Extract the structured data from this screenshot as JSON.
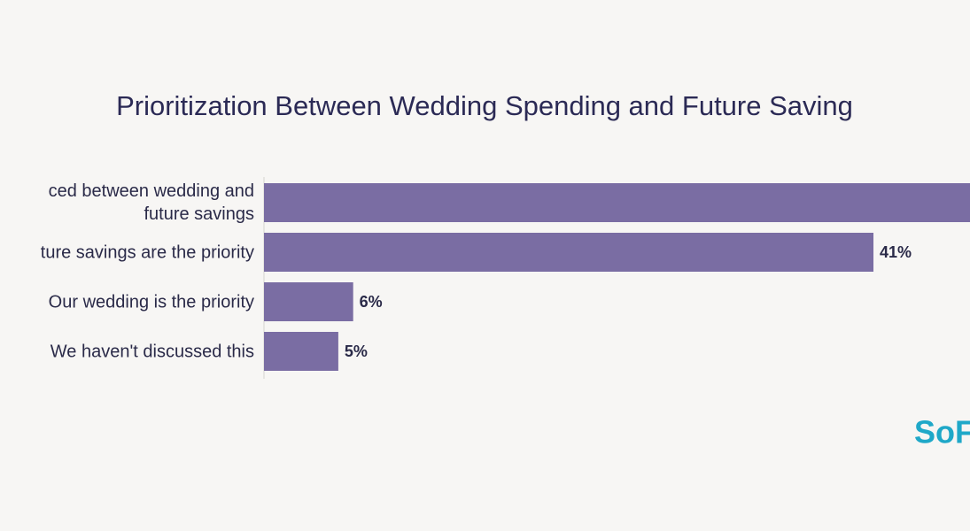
{
  "chart_data": {
    "type": "bar",
    "orientation": "horizontal",
    "title": "Prioritization Between Wedding Spending and Future Saving",
    "categories": [
      "ced between wedding and\nfuture savings",
      "ture savings are the priority",
      "Our wedding is the priority",
      "We haven't discussed this"
    ],
    "values": [
      48,
      41,
      6,
      5
    ],
    "value_labels": [
      null,
      "41%",
      "6%",
      "5%"
    ],
    "color": "#7a6da3",
    "logo": "SoF"
  }
}
